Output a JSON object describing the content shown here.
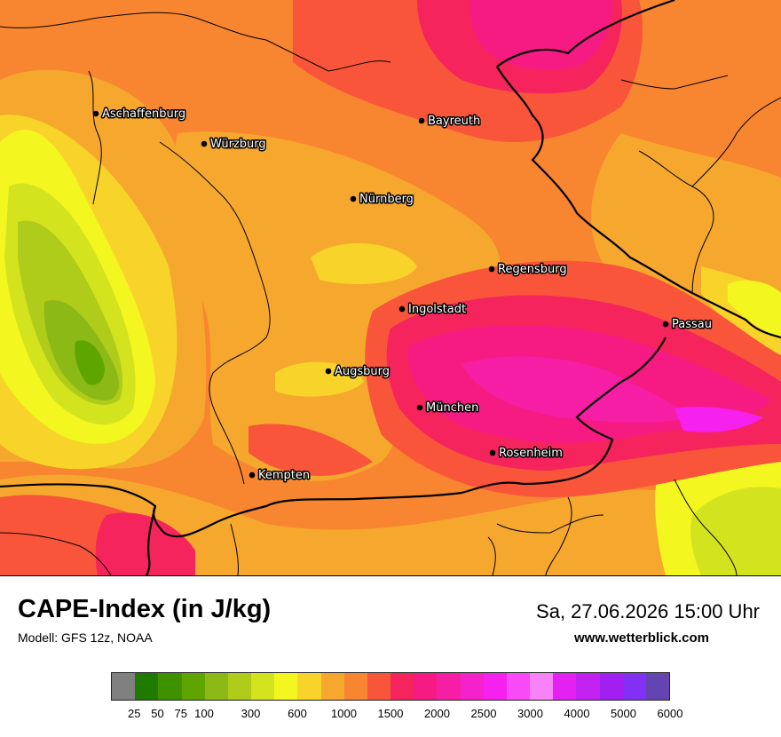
{
  "header": {
    "title": "CAPE-Index (in J/kg)",
    "model": "Modell: GFS 12z, NOAA",
    "datetime": "Sa, 27.06.2026 15:00 Uhr",
    "website": "www.wetterblick.com"
  },
  "cities": [
    {
      "name": "Aschaffenburg"
    },
    {
      "name": "Würzburg"
    },
    {
      "name": "Bayreuth"
    },
    {
      "name": "Nürnberg"
    },
    {
      "name": "Regensburg"
    },
    {
      "name": "Ingolstadt"
    },
    {
      "name": "Passau"
    },
    {
      "name": "Augsburg"
    },
    {
      "name": "München"
    },
    {
      "name": "Rosenheim"
    },
    {
      "name": "Kempten"
    }
  ],
  "legend": {
    "colors": [
      "#808080",
      "#1f7a00",
      "#3e9200",
      "#5fa500",
      "#8cb915",
      "#b0cc1a",
      "#d3e41e",
      "#f4f71f",
      "#f8d42a",
      "#f6a82e",
      "#f8852f",
      "#f8553a",
      "#f5245c",
      "#f61b82",
      "#f61ea5",
      "#f521cb",
      "#f620ef",
      "#f84af7",
      "#f882f7",
      "#e421f2",
      "#c121f1",
      "#a21ff1",
      "#8330f5",
      "#6444b0"
    ],
    "ticks": [
      "25",
      "50",
      "75",
      "100",
      "300",
      "600",
      "1000",
      "1500",
      "2000",
      "2500",
      "3000",
      "4000",
      "5000",
      "6000"
    ]
  },
  "map_colors": {
    "base": "#f8852f",
    "orange_light": "#f6a82e",
    "yellow_orange": "#f8d42a",
    "yellow": "#f4f71f",
    "lime": "#d3e41e",
    "yellow_green": "#b0cc1a",
    "green_light": "#8cb915",
    "green": "#5fa500",
    "red_orange": "#f8553a",
    "red": "#f5245c",
    "pink": "#f61b82",
    "magenta": "#f61ea5",
    "magenta_bright": "#f620ef"
  }
}
